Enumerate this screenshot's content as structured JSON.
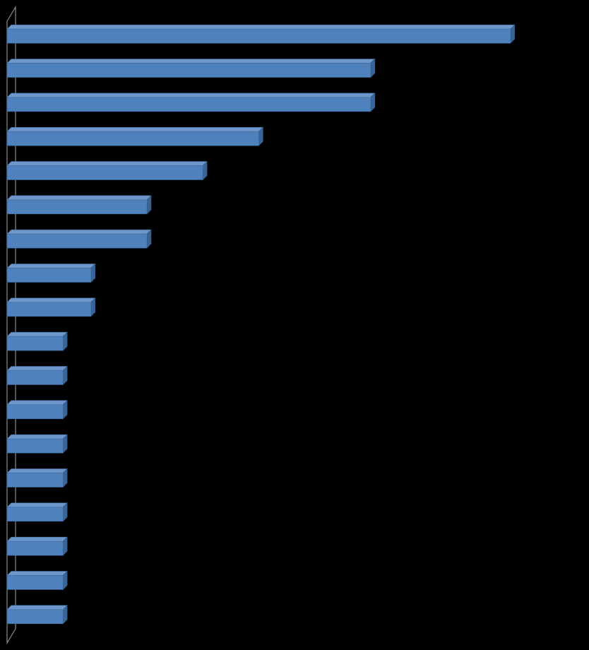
{
  "chart_data": {
    "type": "bar",
    "orientation": "horizontal",
    "categories": [
      null,
      null,
      null,
      null,
      null,
      null,
      null,
      null,
      null,
      null,
      null,
      null,
      null,
      null,
      null,
      null,
      null,
      null
    ],
    "values": [
      9,
      6.5,
      6.5,
      4.5,
      3.5,
      2.5,
      2.5,
      1.5,
      1.5,
      1,
      1,
      1,
      1,
      1,
      1,
      1,
      1,
      1
    ],
    "color": "#4f81bd",
    "xlim": [
      0,
      10
    ]
  }
}
